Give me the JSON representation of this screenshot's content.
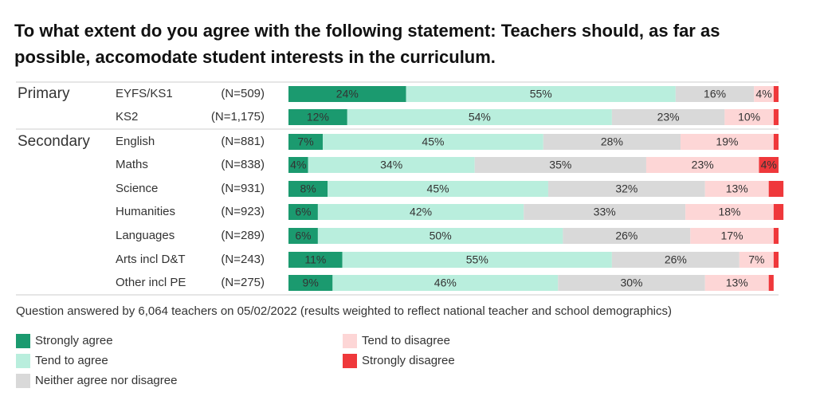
{
  "chart_data": {
    "type": "bar",
    "orientation": "horizontal",
    "stacked": true,
    "title": "To what extent do you agree with the following statement: Teachers should, as far as possible, accomodate student interests in the curriculum.",
    "group_labels": [
      "Primary",
      null,
      "Secondary",
      null,
      null,
      null,
      null,
      null,
      null
    ],
    "categories": [
      "EYFS/KS1",
      "KS2",
      "English",
      "Maths",
      "Science",
      "Humanities",
      "Languages",
      "Arts incl D&T",
      "Other incl PE"
    ],
    "n_labels": [
      "(N=509)",
      "(N=1,175)",
      "(N=881)",
      "(N=838)",
      "(N=931)",
      "(N=923)",
      "(N=289)",
      "(N=243)",
      "(N=275)"
    ],
    "xlim": [
      0,
      100
    ],
    "series": [
      {
        "name": "Strongly agree",
        "color": "#1b9a6f",
        "values": [
          24,
          12,
          7,
          4,
          8,
          6,
          6,
          11,
          9
        ],
        "value_labels": [
          "24%",
          "12%",
          "7%",
          "4%",
          "8%",
          "6%",
          "6%",
          "11%",
          "9%"
        ]
      },
      {
        "name": "Tend to agree",
        "color": "#b9eedd",
        "values": [
          55,
          54,
          45,
          34,
          45,
          42,
          50,
          55,
          46
        ],
        "value_labels": [
          "55%",
          "54%",
          "45%",
          "34%",
          "45%",
          "42%",
          "50%",
          "55%",
          "46%"
        ]
      },
      {
        "name": "Neither agree nor disagree",
        "color": "#d9d9d9",
        "values": [
          16,
          23,
          28,
          35,
          32,
          33,
          26,
          26,
          30
        ],
        "value_labels": [
          "16%",
          "23%",
          "28%",
          "35%",
          "32%",
          "33%",
          "26%",
          "26%",
          "30%"
        ]
      },
      {
        "name": "Tend to disagree",
        "color": "#fdd6d6",
        "values": [
          4,
          10,
          19,
          23,
          13,
          18,
          17,
          7,
          13
        ],
        "value_labels": [
          "4%",
          "10%",
          "19%",
          "23%",
          "13%",
          "18%",
          "17%",
          "7%",
          "13%"
        ]
      },
      {
        "name": "Strongly disagree",
        "color": "#ef383b",
        "values": [
          1,
          1,
          1,
          4,
          3,
          2,
          1,
          1,
          1
        ],
        "value_labels": [
          null,
          null,
          null,
          "4%",
          null,
          null,
          null,
          null,
          null
        ]
      }
    ],
    "note": "Question answered by 6,064 teachers on 05/02/2022 (results weighted to reflect national teacher and school demographics)",
    "legend_columns": 2
  }
}
